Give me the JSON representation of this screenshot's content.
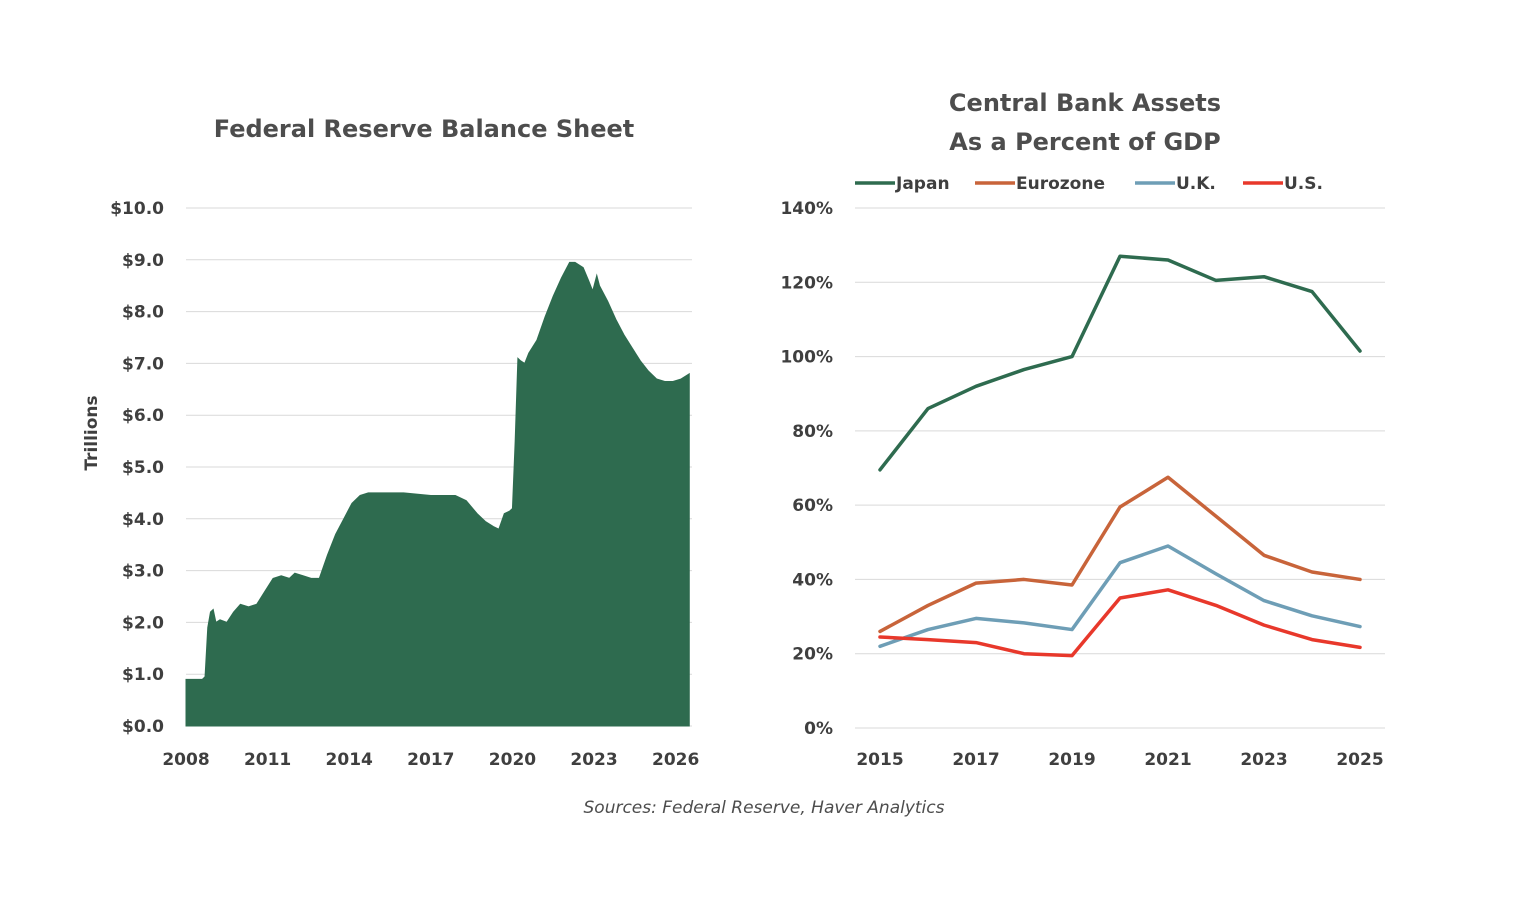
{
  "source_note": "Sources: Federal Reserve, Haver Analytics",
  "chart_data": [
    {
      "type": "area",
      "title": "Federal Reserve Balance Sheet",
      "ylabel": "Trillions",
      "xlabel": "",
      "ylim": [
        0,
        10
      ],
      "xlim": [
        2008,
        2026.6
      ],
      "yticks": [
        0,
        1,
        2,
        3,
        4,
        5,
        6,
        7,
        8,
        9,
        10
      ],
      "ytick_labels": [
        "$0.0",
        "$1.0",
        "$2.0",
        "$3.0",
        "$4.0",
        "$5.0",
        "$6.0",
        "$7.0",
        "$8.0",
        "$9.0",
        "$10.0"
      ],
      "xticks": [
        2008,
        2011,
        2014,
        2017,
        2020,
        2023,
        2026
      ],
      "xtick_labels": [
        "2008",
        "2011",
        "2014",
        "2017",
        "2020",
        "2023",
        "2026"
      ],
      "grid": true,
      "color": "#2e6b4f",
      "series": [
        {
          "x": [
            2008.0,
            2008.6,
            2008.7,
            2008.8,
            2008.9,
            2009.0,
            2009.1,
            2009.25,
            2009.5,
            2009.75,
            2010.0,
            2010.3,
            2010.6,
            2010.9,
            2011.2,
            2011.5,
            2011.8,
            2012.0,
            2012.3,
            2012.6,
            2012.9,
            2013.2,
            2013.5,
            2013.8,
            2014.1,
            2014.4,
            2014.7,
            2015.0,
            2016.0,
            2017.0,
            2017.5,
            2017.9,
            2018.3,
            2018.7,
            2019.0,
            2019.3,
            2019.5,
            2019.7,
            2019.9,
            2020.0,
            2020.1,
            2020.2,
            2020.3,
            2020.45,
            2020.6,
            2020.9,
            2021.2,
            2021.5,
            2021.8,
            2022.1,
            2022.3,
            2022.6,
            2022.8,
            2022.95,
            2023.1,
            2023.2,
            2023.5,
            2023.8,
            2024.1,
            2024.4,
            2024.7,
            2025.0,
            2025.3,
            2025.6,
            2025.9,
            2026.2,
            2026.5
          ],
          "y": [
            0.9,
            0.9,
            0.95,
            1.9,
            2.2,
            2.25,
            2.0,
            2.05,
            2.0,
            2.2,
            2.35,
            2.3,
            2.35,
            2.6,
            2.85,
            2.9,
            2.85,
            2.95,
            2.9,
            2.85,
            2.85,
            3.3,
            3.7,
            4.0,
            4.3,
            4.45,
            4.5,
            4.5,
            4.5,
            4.45,
            4.45,
            4.45,
            4.35,
            4.1,
            3.95,
            3.85,
            3.8,
            4.1,
            4.15,
            4.2,
            5.5,
            7.1,
            7.05,
            7.0,
            7.2,
            7.45,
            7.9,
            8.3,
            8.65,
            8.95,
            8.95,
            8.85,
            8.6,
            8.4,
            8.7,
            8.5,
            8.2,
            7.85,
            7.55,
            7.3,
            7.05,
            6.85,
            6.7,
            6.65,
            6.65,
            6.7,
            6.8
          ]
        }
      ]
    },
    {
      "type": "line",
      "title": "Central Bank Assets\nAs a Percent of GDP",
      "title_lines": [
        "Central Bank Assets",
        "As a Percent of GDP"
      ],
      "xlabel": "",
      "ylabel": "",
      "ylim": [
        0,
        140
      ],
      "xlim": [
        2015,
        2025
      ],
      "yticks": [
        0,
        20,
        40,
        60,
        80,
        100,
        120,
        140
      ],
      "ytick_labels": [
        "0%",
        "20%",
        "40%",
        "60%",
        "80%",
        "100%",
        "120%",
        "140%"
      ],
      "xticks": [
        2015,
        2017,
        2019,
        2021,
        2023,
        2025
      ],
      "xtick_labels": [
        "2015",
        "2017",
        "2019",
        "2021",
        "2023",
        "2025"
      ],
      "grid": true,
      "legend_position": "top",
      "x": [
        2015,
        2016,
        2017,
        2018,
        2019,
        2020,
        2021,
        2022,
        2023,
        2024,
        2025
      ],
      "series": [
        {
          "name": "Japan",
          "color": "#2e6b4f",
          "values": [
            69.5,
            86,
            92,
            96.5,
            100,
            127,
            126,
            120.5,
            121.5,
            117.5,
            101.5
          ]
        },
        {
          "name": "Eurozone",
          "color": "#c8643a",
          "values": [
            26,
            33,
            39,
            40,
            38.5,
            59.5,
            67.5,
            57,
            46.5,
            42,
            40
          ]
        },
        {
          "name": "U.K.",
          "color": "#6e9eb6",
          "values": [
            22,
            26.5,
            29.5,
            28.3,
            26.5,
            44.5,
            49,
            41.5,
            34.3,
            30.2,
            27.3
          ]
        },
        {
          "name": "U.S.",
          "color": "#e8382b",
          "values": [
            24.5,
            23.8,
            23,
            20,
            19.5,
            35,
            37.2,
            33,
            27.7,
            23.8,
            21.7
          ]
        }
      ]
    }
  ]
}
